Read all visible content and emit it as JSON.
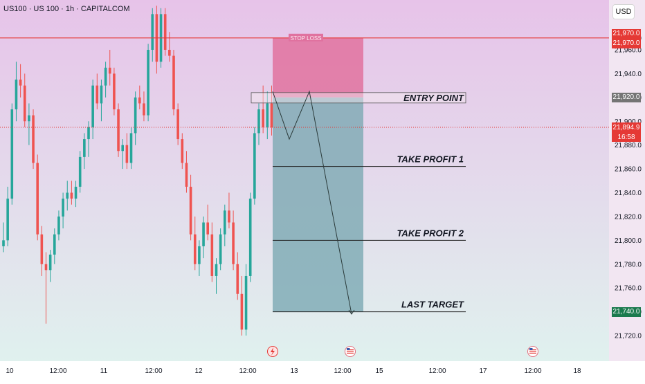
{
  "header": {
    "symbol_title": "US100 · US 100 · 1h · CAPITALCOM"
  },
  "currency_button": "USD",
  "chart_data": {
    "type": "candlestick",
    "instrument": "US100 · US 100 · 1h · CAPITALCOM",
    "ylim": [
      21705,
      21997
    ],
    "y_ticks": [
      "21,720.0",
      "21,740.0",
      "21,760.0",
      "21,780.0",
      "21,800.0",
      "21,820.0",
      "21,840.0",
      "21,860.0",
      "21,880.0",
      "21,900.0",
      "21,920.0",
      "21,940.0",
      "21,960.0",
      "21,970.0"
    ],
    "x_tick_labels": [
      "10",
      "12:00",
      "11",
      "12:00",
      "12",
      "12:00",
      "13",
      "12:00",
      "15",
      "12:00",
      "17",
      "12:00",
      "18"
    ],
    "colors": {
      "up": "#26a69a",
      "down": "#ef5350",
      "stop_zone": "#e0729f",
      "profit_zone": "#7ca9b3",
      "background_top": "#eac5ea",
      "background_bottom": "#dff0ee"
    },
    "candles": [
      {
        "o": 21795,
        "h": 21815,
        "l": 21790,
        "c": 21800
      },
      {
        "o": 21800,
        "h": 21845,
        "l": 21795,
        "c": 21835
      },
      {
        "o": 21835,
        "h": 21915,
        "l": 21830,
        "c": 21910
      },
      {
        "o": 21910,
        "h": 21950,
        "l": 21900,
        "c": 21935
      },
      {
        "o": 21935,
        "h": 21948,
        "l": 21920,
        "c": 21930
      },
      {
        "o": 21930,
        "h": 21940,
        "l": 21895,
        "c": 21900
      },
      {
        "o": 21900,
        "h": 21915,
        "l": 21880,
        "c": 21905
      },
      {
        "o": 21905,
        "h": 21910,
        "l": 21860,
        "c": 21865
      },
      {
        "o": 21865,
        "h": 21872,
        "l": 21800,
        "c": 21805
      },
      {
        "o": 21805,
        "h": 21812,
        "l": 21770,
        "c": 21780
      },
      {
        "o": 21780,
        "h": 21790,
        "l": 21730,
        "c": 21775
      },
      {
        "o": 21775,
        "h": 21792,
        "l": 21765,
        "c": 21788
      },
      {
        "o": 21788,
        "h": 21810,
        "l": 21780,
        "c": 21805
      },
      {
        "o": 21805,
        "h": 21825,
        "l": 21800,
        "c": 21820
      },
      {
        "o": 21820,
        "h": 21840,
        "l": 21810,
        "c": 21835
      },
      {
        "o": 21835,
        "h": 21850,
        "l": 21825,
        "c": 21840
      },
      {
        "o": 21840,
        "h": 21850,
        "l": 21830,
        "c": 21835
      },
      {
        "o": 21835,
        "h": 21850,
        "l": 21828,
        "c": 21845
      },
      {
        "o": 21845,
        "h": 21875,
        "l": 21840,
        "c": 21870
      },
      {
        "o": 21870,
        "h": 21890,
        "l": 21860,
        "c": 21885
      },
      {
        "o": 21885,
        "h": 21900,
        "l": 21870,
        "c": 21895
      },
      {
        "o": 21895,
        "h": 21935,
        "l": 21885,
        "c": 21930
      },
      {
        "o": 21930,
        "h": 21940,
        "l": 21910,
        "c": 21915
      },
      {
        "o": 21915,
        "h": 21935,
        "l": 21900,
        "c": 21930
      },
      {
        "o": 21930,
        "h": 21950,
        "l": 21920,
        "c": 21945
      },
      {
        "o": 21945,
        "h": 21960,
        "l": 21930,
        "c": 21940
      },
      {
        "o": 21940,
        "h": 21945,
        "l": 21905,
        "c": 21910
      },
      {
        "o": 21910,
        "h": 21915,
        "l": 21870,
        "c": 21875
      },
      {
        "o": 21875,
        "h": 21885,
        "l": 21860,
        "c": 21880
      },
      {
        "o": 21880,
        "h": 21890,
        "l": 21860,
        "c": 21865
      },
      {
        "o": 21865,
        "h": 21895,
        "l": 21860,
        "c": 21890
      },
      {
        "o": 21890,
        "h": 21925,
        "l": 21880,
        "c": 21920
      },
      {
        "o": 21920,
        "h": 21930,
        "l": 21910,
        "c": 21915
      },
      {
        "o": 21915,
        "h": 21925,
        "l": 21900,
        "c": 21905
      },
      {
        "o": 21905,
        "h": 21965,
        "l": 21900,
        "c": 21960
      },
      {
        "o": 21960,
        "h": 21995,
        "l": 21950,
        "c": 21990
      },
      {
        "o": 21990,
        "h": 21997,
        "l": 21940,
        "c": 21950
      },
      {
        "o": 21950,
        "h": 21995,
        "l": 21945,
        "c": 21990
      },
      {
        "o": 21990,
        "h": 21995,
        "l": 21955,
        "c": 21960
      },
      {
        "o": 21960,
        "h": 21975,
        "l": 21950,
        "c": 21955
      },
      {
        "o": 21955,
        "h": 21960,
        "l": 21905,
        "c": 21910
      },
      {
        "o": 21910,
        "h": 21915,
        "l": 21880,
        "c": 21885
      },
      {
        "o": 21885,
        "h": 21890,
        "l": 21860,
        "c": 21865
      },
      {
        "o": 21865,
        "h": 21875,
        "l": 21840,
        "c": 21845
      },
      {
        "o": 21845,
        "h": 21855,
        "l": 21800,
        "c": 21805
      },
      {
        "o": 21805,
        "h": 21820,
        "l": 21775,
        "c": 21780
      },
      {
        "o": 21780,
        "h": 21800,
        "l": 21770,
        "c": 21795
      },
      {
        "o": 21795,
        "h": 21820,
        "l": 21785,
        "c": 21815
      },
      {
        "o": 21815,
        "h": 21830,
        "l": 21800,
        "c": 21805
      },
      {
        "o": 21805,
        "h": 21815,
        "l": 21765,
        "c": 21770
      },
      {
        "o": 21770,
        "h": 21785,
        "l": 21755,
        "c": 21780
      },
      {
        "o": 21780,
        "h": 21810,
        "l": 21775,
        "c": 21805
      },
      {
        "o": 21805,
        "h": 21830,
        "l": 21795,
        "c": 21825
      },
      {
        "o": 21825,
        "h": 21840,
        "l": 21810,
        "c": 21815
      },
      {
        "o": 21815,
        "h": 21825,
        "l": 21775,
        "c": 21780
      },
      {
        "o": 21780,
        "h": 21790,
        "l": 21750,
        "c": 21755
      },
      {
        "o": 21755,
        "h": 21770,
        "l": 21720,
        "c": 21725
      },
      {
        "o": 21725,
        "h": 21780,
        "l": 21720,
        "c": 21770
      },
      {
        "o": 21770,
        "h": 21840,
        "l": 21765,
        "c": 21835
      },
      {
        "o": 21835,
        "h": 21895,
        "l": 21830,
        "c": 21890
      },
      {
        "o": 21890,
        "h": 21915,
        "l": 21880,
        "c": 21910
      },
      {
        "o": 21910,
        "h": 21930,
        "l": 21890,
        "c": 21895
      },
      {
        "o": 21895,
        "h": 21925,
        "l": 21885,
        "c": 21915
      },
      {
        "o": 21915,
        "h": 21930,
        "l": 21888,
        "c": 21894.9
      }
    ],
    "levels": [
      {
        "label": "STOP LOSS",
        "price": 21970.0
      },
      {
        "label": "ENTRY POINT",
        "price": 21920.0
      },
      {
        "label": "TAKE PROFIT 1",
        "price": 21862
      },
      {
        "label": "TAKE PROFIT 2",
        "price": 21800
      },
      {
        "label": "LAST TARGET",
        "price": 21740.0
      }
    ],
    "price_labels": [
      {
        "text": "21,970.0",
        "price": 21970.0,
        "color": "#e53935"
      },
      {
        "text": "21,920.0",
        "price": 21920.0,
        "color": "#757575"
      },
      {
        "text": "21,894.9",
        "price": 21894.9,
        "color": "#e53935"
      },
      {
        "text": "16:58",
        "price": 21894.9,
        "color": "#e53935"
      },
      {
        "text": "21,740.0",
        "price": 21740.0,
        "color": "#1b7a4e"
      }
    ],
    "current_price": 21894.9,
    "countdown": "16:58"
  }
}
